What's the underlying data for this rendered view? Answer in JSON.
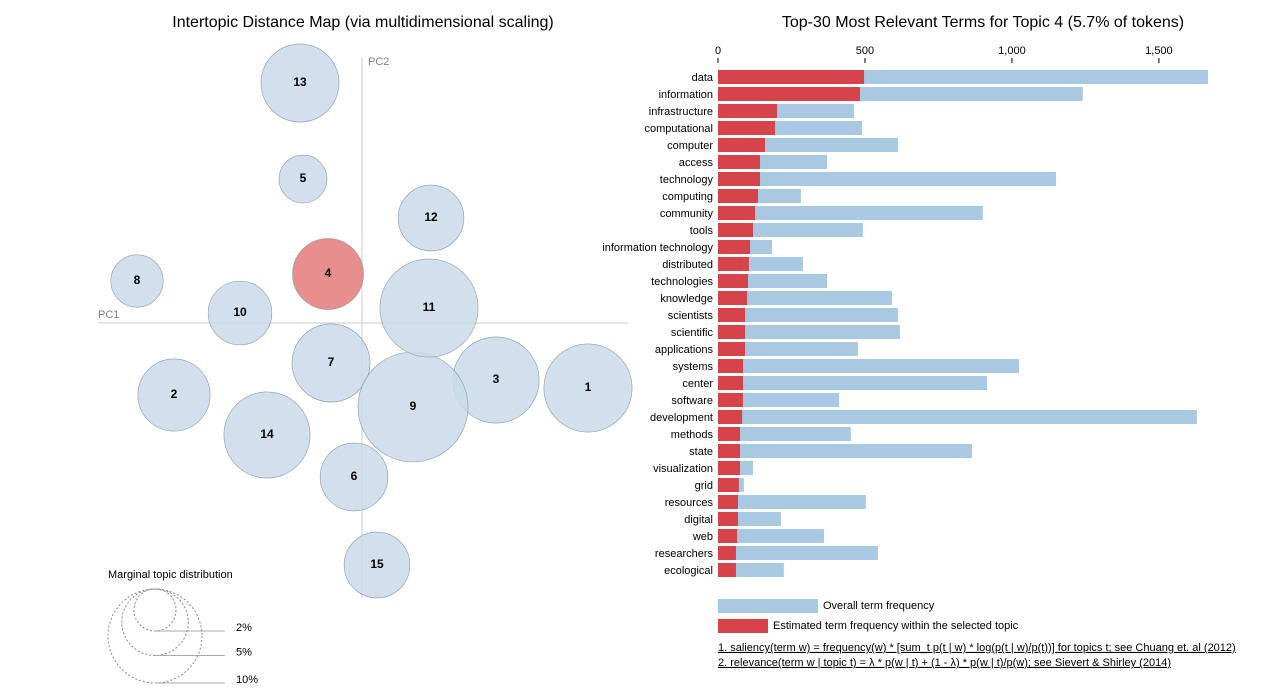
{
  "chart_data": [
    {
      "type": "scatter",
      "title": "Intertopic Distance Map (via multidimensional scaling)",
      "xlabel": "PC1",
      "ylabel": "PC2",
      "labels": [
        "1",
        "2",
        "3",
        "4",
        "5",
        "6",
        "7",
        "8",
        "9",
        "10",
        "11",
        "12",
        "13",
        "14",
        "15"
      ],
      "x": [
        0.226,
        -0.188,
        0.134,
        -0.034,
        -0.059,
        -0.008,
        -0.031,
        -0.225,
        0.051,
        -0.122,
        0.067,
        0.069,
        -0.062,
        -0.095,
        0.015
      ],
      "y": [
        -0.065,
        -0.072,
        -0.057,
        0.049,
        0.144,
        -0.154,
        -0.04,
        0.042,
        -0.084,
        0.01,
        0.015,
        0.105,
        0.24,
        -0.112,
        -0.242
      ],
      "sizes": [
        8.8,
        5.9,
        8.4,
        5.7,
        2.6,
        5.2,
        6.9,
        3.1,
        13.7,
        4.6,
        10.9,
        4.9,
        6.9,
        8.4,
        4.9
      ],
      "colors": [
        "#c9dbe9",
        "#c9dbe9",
        "#c9dbe9",
        "#e57a7a",
        "#c9dbe9",
        "#c9dbe9",
        "#c9dbe9",
        "#c9dbe9",
        "#c9dbe9",
        "#c9dbe9",
        "#c9dbe9",
        "#c9dbe9",
        "#c9dbe9",
        "#c9dbe9",
        "#c9dbe9"
      ],
      "xlim": [
        -0.264,
        0.266
      ],
      "ylim": [
        -0.265,
        0.265
      ],
      "size_legend": {
        "title": "Marginal topic distribution",
        "ticks": [
          {
            "value": 2,
            "label": "2%"
          },
          {
            "value": 5,
            "label": "5%"
          },
          {
            "value": 10,
            "label": "10%"
          }
        ]
      }
    },
    {
      "type": "bar",
      "title": "Top-30 Most Relevant Terms for Topic 4 (5.7% of tokens)",
      "categories": [
        "data",
        "information",
        "infrastructure",
        "computational",
        "computer",
        "access",
        "technology",
        "computing",
        "community",
        "tools",
        "information technology",
        "distributed",
        "technologies",
        "knowledge",
        "scientists",
        "scientific",
        "applications",
        "systems",
        "center",
        "software",
        "development",
        "methods",
        "state",
        "visualization",
        "grid",
        "resources",
        "digital",
        "web",
        "researchers",
        "ecological"
      ],
      "series": [
        {
          "name": "Overall term frequency",
          "color": "#a8c9e1",
          "values": [
            1667,
            1241,
            463,
            490,
            612,
            371,
            1150,
            282,
            901,
            493,
            184,
            289,
            371,
            592,
            612,
            619,
            476,
            1024,
            915,
            412,
            1629,
            452,
            864,
            119,
            88,
            503,
            214,
            361,
            544,
            224
          ]
        },
        {
          "name": "Estimated term frequency within the selected topic",
          "color": "#d6434b",
          "values": [
            497,
            483,
            201,
            194,
            160,
            143,
            143,
            136,
            126,
            119,
            109,
            105,
            102,
            99,
            92,
            92,
            92,
            85,
            85,
            85,
            82,
            75,
            75,
            75,
            71,
            68,
            68,
            65,
            61,
            61
          ]
        }
      ],
      "xlim": [
        0,
        1667
      ],
      "xticks": [
        0,
        500,
        {
          "value": 1000,
          "label": "1,000"
        },
        {
          "value": 1500,
          "label": "1,500"
        }
      ],
      "notes": [
        "1. saliency(term w) = frequency(w) * [sum_t p(t | w) * log(p(t | w)/p(t))] for topics t; see Chuang et. al (2012)",
        "2. relevance(term w | topic t) = λ * p(w | t) + (1 - λ) * p(w | t)/p(w); see Sievert & Shirley (2014)"
      ]
    }
  ]
}
